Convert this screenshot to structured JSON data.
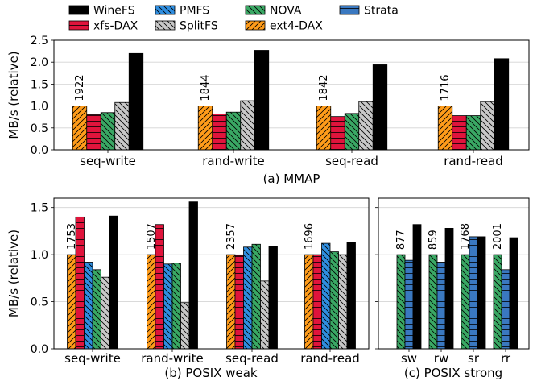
{
  "legend": [
    {
      "name": "WineFS",
      "color": "#000000",
      "pattern": "solid"
    },
    {
      "name": "xfs-DAX",
      "color": "#e0143c",
      "pattern": "hline"
    },
    {
      "name": "PMFS",
      "color": "#2f8ee0",
      "pattern": "backslash"
    },
    {
      "name": "SplitFS",
      "color": "#c8c8c8",
      "pattern": "backslash"
    },
    {
      "name": "NOVA",
      "color": "#3aa864",
      "pattern": "backslash"
    },
    {
      "name": "ext4-DAX",
      "color": "#ff9c1a",
      "pattern": "slash"
    },
    {
      "name": "Strata",
      "color": "#3a78c0",
      "pattern": "hline"
    }
  ],
  "chart_data": [
    {
      "type": "bar",
      "panel": "mmap",
      "title": "(a) MMAP",
      "ylabel": "MB/s (relative)",
      "ylim": [
        0,
        2.5
      ],
      "yticks": [
        "0.0",
        "0.5",
        "1.0",
        "1.5",
        "2.0",
        "2.5"
      ],
      "grid": "horizontal",
      "categories": [
        "seq-write",
        "rand-write",
        "seq-read",
        "rand-read"
      ],
      "baseline_labels": [
        "1922",
        "1844",
        "1842",
        "1716"
      ],
      "series": [
        {
          "name": "ext4-DAX",
          "values": [
            1.0,
            1.0,
            1.0,
            1.0
          ]
        },
        {
          "name": "xfs-DAX",
          "values": [
            0.8,
            0.82,
            0.76,
            0.78
          ]
        },
        {
          "name": "NOVA",
          "values": [
            0.85,
            0.86,
            0.83,
            0.78
          ]
        },
        {
          "name": "SplitFS",
          "values": [
            1.08,
            1.12,
            1.1,
            1.1
          ]
        },
        {
          "name": "WineFS",
          "values": [
            2.2,
            2.27,
            1.94,
            2.08
          ]
        }
      ]
    },
    {
      "type": "bar",
      "panel": "posix-weak",
      "title": "(b) POSIX weak",
      "ylabel": "MB/s (relative)",
      "ylim": [
        0,
        1.6
      ],
      "yticks": [
        "0.0",
        "0.5",
        "1.0",
        "1.5"
      ],
      "grid": "horizontal",
      "categories": [
        "seq-write",
        "rand-write",
        "seq-read",
        "rand-read"
      ],
      "baseline_labels": [
        "1753",
        "1507",
        "2357",
        "1696"
      ],
      "series": [
        {
          "name": "ext4-DAX",
          "values": [
            1.0,
            1.0,
            1.0,
            1.0
          ]
        },
        {
          "name": "xfs-DAX",
          "values": [
            1.4,
            1.32,
            0.99,
            1.0
          ]
        },
        {
          "name": "PMFS",
          "values": [
            0.92,
            0.9,
            1.08,
            1.12
          ]
        },
        {
          "name": "NOVA",
          "values": [
            0.84,
            0.91,
            1.11,
            1.03
          ]
        },
        {
          "name": "SplitFS",
          "values": [
            0.76,
            0.49,
            0.72,
            1.0
          ]
        },
        {
          "name": "WineFS",
          "values": [
            1.41,
            1.56,
            1.09,
            1.13
          ]
        }
      ]
    },
    {
      "type": "bar",
      "panel": "posix-strong",
      "title": "(c) POSIX strong",
      "ylim": [
        0,
        1.6
      ],
      "grid": "horizontal",
      "categories": [
        "sw",
        "rw",
        "sr",
        "rr"
      ],
      "baseline_labels": [
        "877",
        "859",
        "1768",
        "2001"
      ],
      "series": [
        {
          "name": "NOVA",
          "values": [
            1.0,
            1.0,
            1.0,
            1.0
          ]
        },
        {
          "name": "Strata",
          "values": [
            0.94,
            0.92,
            1.19,
            0.84
          ]
        },
        {
          "name": "WineFS",
          "values": [
            1.32,
            1.28,
            1.19,
            1.18
          ]
        }
      ]
    }
  ]
}
